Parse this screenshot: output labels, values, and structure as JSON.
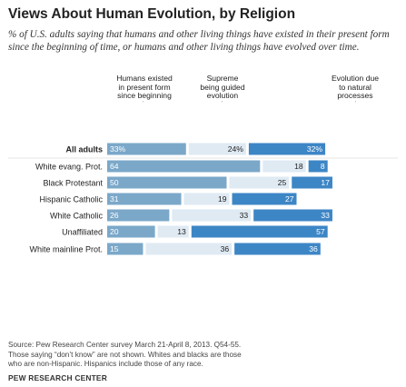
{
  "chart_data": {
    "type": "bar",
    "stacked": true,
    "title": "Views About Human Evolution, by Religion",
    "subtitle": "% of U.S. adults saying that humans and other living things have existed in their present form since the beginning of time, or humans and other living things have evolved over time.",
    "columns": [
      {
        "name": "Humans existed in present form since beginning",
        "color": "#7ba8c9"
      },
      {
        "name": "Supreme being guided evolution",
        "color": "#dfeaf3"
      },
      {
        "name": "Evolution due to natural processes",
        "color": "#3d86c6"
      }
    ],
    "categories": [
      "All adults",
      "White evang. Prot.",
      "Black Protestant",
      "Hispanic Catholic",
      "White Catholic",
      "Unaffiliated",
      "White mainline Prot."
    ],
    "series": [
      {
        "name": "Humans existed in present form since beginning",
        "values": [
          33,
          64,
          50,
          31,
          26,
          20,
          15
        ]
      },
      {
        "name": "Supreme being guided evolution",
        "values": [
          24,
          18,
          25,
          19,
          33,
          13,
          36
        ]
      },
      {
        "name": "Evolution due to natural processes",
        "values": [
          32,
          8,
          17,
          27,
          33,
          57,
          36
        ]
      }
    ],
    "value_labels": [
      [
        "33%",
        "24%",
        "32%"
      ],
      [
        "64",
        "18",
        "8"
      ],
      [
        "50",
        "25",
        "17"
      ],
      [
        "31",
        "19",
        "27"
      ],
      [
        "26",
        "33",
        "33"
      ],
      [
        "20",
        "13",
        "57"
      ],
      [
        "15",
        "36",
        "36"
      ]
    ]
  },
  "header": {
    "col1": "Humans existed\nin present form\nsince beginning",
    "col2": "Supreme\nbeing guided\nevolution",
    "col3": "Evolution due\nto natural\nprocesses"
  },
  "footer": {
    "source": "Source: Pew Research Center survey March 21-April 8, 2013. Q54-55.\nThose saying “don’t know” are not shown. Whites and blacks are those\nwho are non-Hispanic. Hispanics include those of any race.",
    "credit": "PEW RESEARCH CENTER"
  }
}
